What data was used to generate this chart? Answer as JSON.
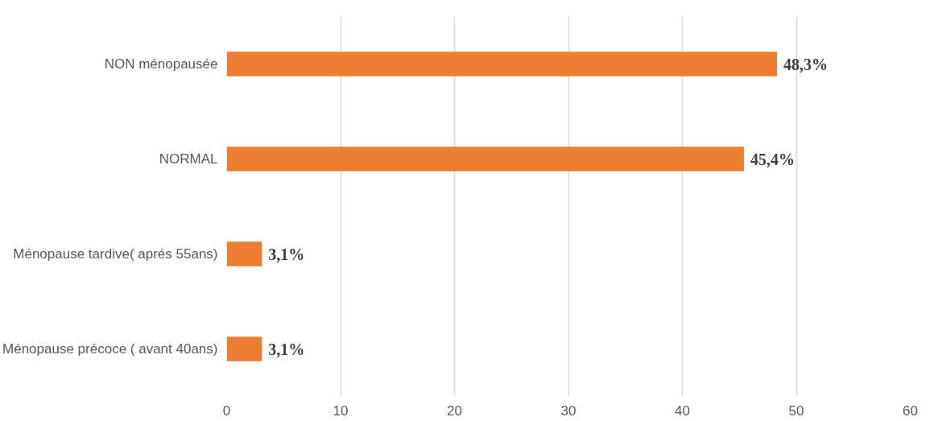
{
  "chart_data": {
    "type": "bar",
    "orientation": "horizontal",
    "categories": [
      "NON ménopausée",
      "NORMAL",
      "Ménopause tardive( aprés 55ans)",
      "Ménopause précoce ( avant 40ans)"
    ],
    "values": [
      48.3,
      45.4,
      3.1,
      3.1
    ],
    "value_labels": [
      "48,3%",
      "45,4%",
      "3,1%",
      "3,1%"
    ],
    "color": "#ed7d31",
    "xlim": [
      0,
      60
    ],
    "xticks": [
      0,
      10,
      20,
      30,
      40,
      50,
      60
    ],
    "grid": "x"
  }
}
